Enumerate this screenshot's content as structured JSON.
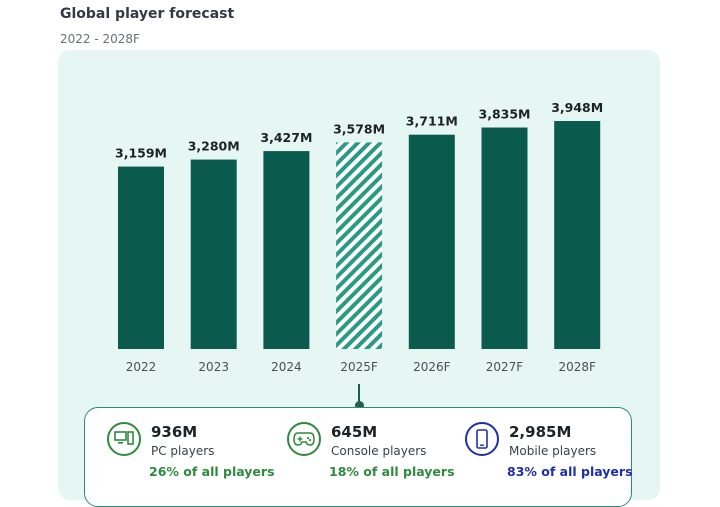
{
  "header": {
    "title": "Global player forecast",
    "subtitle": "2022 - 2028F"
  },
  "chart_data": {
    "type": "bar",
    "categories": [
      "2022",
      "2023",
      "2024",
      "2025F",
      "2026F",
      "2027F",
      "2028F"
    ],
    "values": [
      3159,
      3280,
      3427,
      3578,
      3711,
      3835,
      3948
    ],
    "value_labels": [
      "3,159M",
      "3,280M",
      "3,427M",
      "3,578M",
      "3,711M",
      "3,835M",
      "3,948M"
    ],
    "highlighted_category": "2025F",
    "title": "Global player forecast",
    "subtitle": "2022 - 2028F",
    "xlabel": "",
    "ylabel": "",
    "ylim": [
      0,
      3948
    ],
    "grid": false,
    "colors": {
      "bar": "#0a5a4d",
      "highlight_stripe": "#2a9a86",
      "panel": "#e6f6f3"
    }
  },
  "stats": [
    {
      "icon": "pc-icon",
      "value": "936M",
      "label": "PC players",
      "share": "26% of all players",
      "color": "#2f8a3e"
    },
    {
      "icon": "gamepad-icon",
      "value": "645M",
      "label": "Console players",
      "share": "18% of all players",
      "color": "#2f8a3e"
    },
    {
      "icon": "mobile-icon",
      "value": "2,985M",
      "label": "Mobile players",
      "share": "83% of all players",
      "color": "#1f2fa8"
    }
  ]
}
